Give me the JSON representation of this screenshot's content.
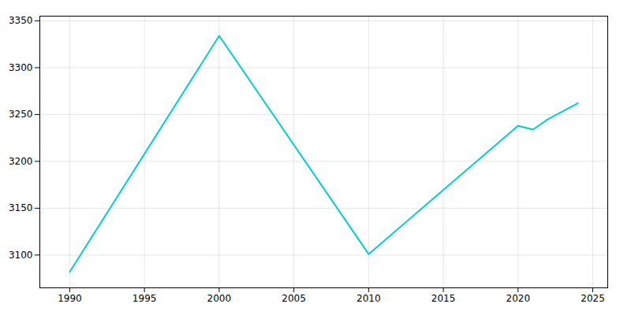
{
  "chart_data": {
    "type": "line",
    "x": [
      1990,
      2000,
      2010,
      2020,
      2021,
      2022,
      2024
    ],
    "values": [
      3082,
      3334,
      3101,
      3238,
      3234,
      3245,
      3262
    ],
    "color": "#00CED1",
    "xlim": [
      1988,
      2026
    ],
    "ylim": [
      3065,
      3355
    ],
    "xticks": [
      1990,
      1995,
      2000,
      2005,
      2010,
      2015,
      2020,
      2025
    ],
    "yticks": [
      3100,
      3150,
      3200,
      3250,
      3300,
      3350
    ],
    "grid": true
  }
}
